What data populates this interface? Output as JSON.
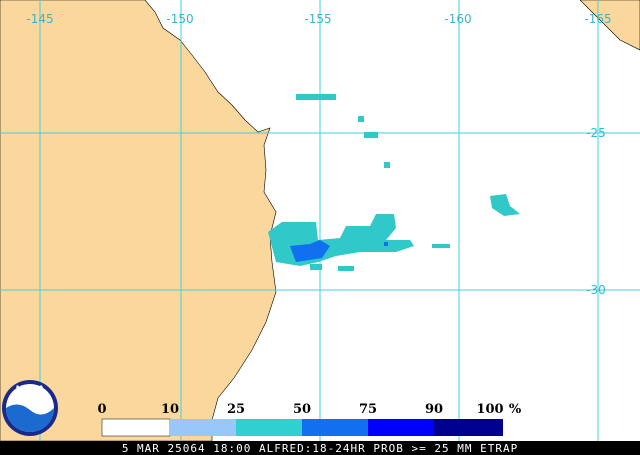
{
  "map": {
    "lon_labels": [
      "-145",
      "-150",
      "-155",
      "-160",
      "-165"
    ],
    "lat_labels": [
      "-25",
      "-30"
    ],
    "legend": {
      "labels": [
        "0",
        "10",
        "25",
        "50",
        "75",
        "90",
        "100"
      ],
      "unit": "%"
    },
    "logo": "NOAA",
    "caption": "5 MAR 25064 18:00 ALFRED:18-24HR PROB >= 25 MM ETRAP"
  }
}
